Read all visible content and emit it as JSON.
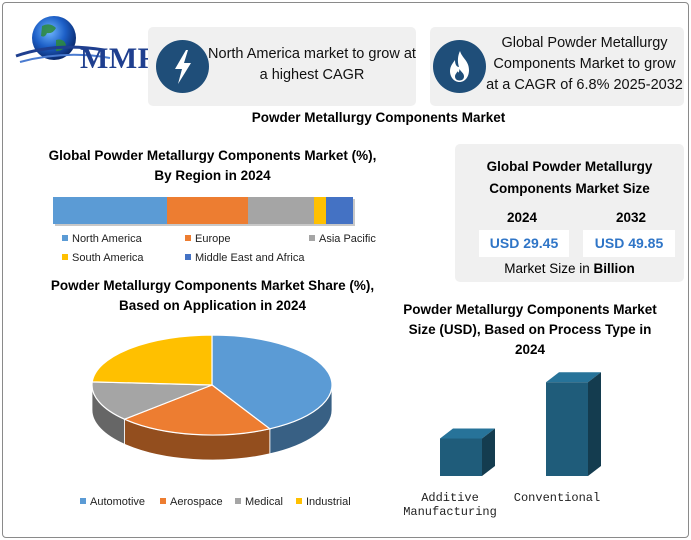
{
  "logo": {
    "text": "MMR"
  },
  "highlights": [
    {
      "icon": "lightning-icon",
      "text": "North America market to grow at a highest CAGR"
    },
    {
      "icon": "flame-icon",
      "text": "Global Powder Metallurgy Components Market to grow at a CAGR of 6.8% 2025-2032"
    }
  ],
  "main_title": "Powder Metallurgy Components Market",
  "market_size": {
    "title": "Global Powder Metallurgy Components Market Size",
    "year_1": "2024",
    "year_2": "2032",
    "value_1": "USD 29.45",
    "value_2": "USD 49.85",
    "note_prefix": "Market Size in ",
    "note_bold": "Billion"
  },
  "colors": {
    "blue": "#5b9bd5",
    "orange": "#ed7d31",
    "gray": "#a5a5a5",
    "yellow": "#ffc000",
    "dark_blue": "#4472c4",
    "teal": "#1f5c7a",
    "icon_bg": "#1f4e79"
  },
  "chart_data": [
    {
      "type": "bar",
      "subtype": "stacked-horizontal-100",
      "title": "Global Powder Metallurgy Components Market (%), By Region in 2024",
      "series": [
        {
          "name": "North America",
          "value": 38,
          "color": "#5b9bd5"
        },
        {
          "name": "Europe",
          "value": 27,
          "color": "#ed7d31"
        },
        {
          "name": "Asia Pacific",
          "value": 22,
          "color": "#a5a5a5"
        },
        {
          "name": "South America",
          "value": 4,
          "color": "#ffc000"
        },
        {
          "name": "Middle East and Africa",
          "value": 9,
          "color": "#4472c4"
        }
      ],
      "legend": "bottom"
    },
    {
      "type": "pie",
      "style": "3d",
      "title": "Powder Metallurgy Components Market Share (%), Based on Application in 2024",
      "categories": [
        "Automotive",
        "Aerospace",
        "Medical",
        "Industrial"
      ],
      "values": [
        42,
        21,
        13,
        24
      ],
      "colors": [
        "#5b9bd5",
        "#ed7d31",
        "#a5a5a5",
        "#ffc000"
      ],
      "legend": "bottom"
    },
    {
      "type": "bar",
      "style": "3d",
      "title": "Powder Metallurgy Components Market Size (USD), Based on Process Type in 2024",
      "categories": [
        "Additive Manufacturing",
        "Conventional"
      ],
      "values": [
        30,
        75
      ],
      "ylim": [
        0,
        80
      ],
      "color": "#1f5c7a"
    }
  ]
}
